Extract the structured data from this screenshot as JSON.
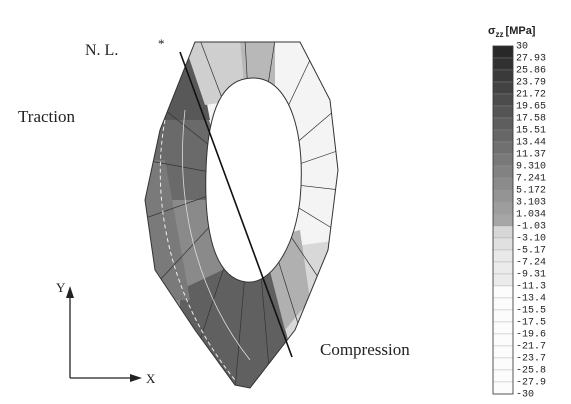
{
  "labels": {
    "neutral_line": "N. L.",
    "asterisk": "*",
    "traction": "Traction",
    "compression": "Compression",
    "y_axis": "Y",
    "x_axis": "X"
  },
  "colorbar": {
    "symbol": "σ",
    "subscript": "zz",
    "unit": "[MPa]",
    "labels": [
      "30",
      "27.93",
      "25.86",
      "23.79",
      "21.72",
      "19.65",
      "17.58",
      "15.51",
      "13.44",
      "11.37",
      "9.310",
      "7.241",
      "5.172",
      "3.103",
      "1.034",
      "-1.03",
      "-3.10",
      "-5.17",
      "-7.24",
      "-9.31",
      "-11.3",
      "-13.4",
      "-15.5",
      "-17.5",
      "-19.6",
      "-21.7",
      "-23.7",
      "-25.8",
      "-27.9",
      "-30"
    ]
  }
}
